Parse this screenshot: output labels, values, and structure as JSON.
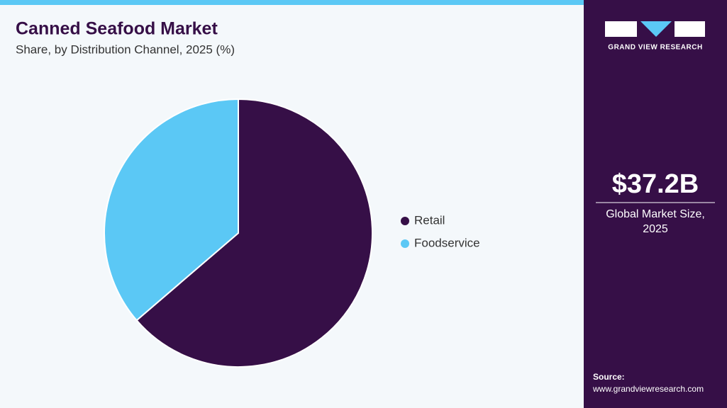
{
  "chart_data": {
    "type": "pie",
    "title": "Canned Seafood Market",
    "subtitle": "Share, by Distribution Channel, 2025 (%)",
    "categories": [
      "Retail",
      "Foodservice"
    ],
    "values": [
      63.7,
      36.3
    ],
    "colors": [
      "#360f47",
      "#5bc8f5"
    ]
  },
  "sidebar": {
    "logo_text": "GRAND VIEW RESEARCH",
    "market_size": "$37.2B",
    "market_size_label": [
      "Global Market Size,",
      "2025"
    ],
    "source_label": "Source:",
    "source_url": "www.grandviewresearch.com"
  }
}
